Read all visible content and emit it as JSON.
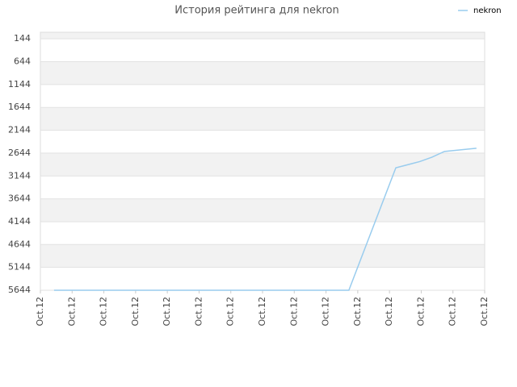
{
  "chart_data": {
    "type": "line",
    "title": "История рейтинга для nekron",
    "x": [
      0.43,
      9.72,
      11.2,
      11.95,
      12.34,
      12.73,
      13.74
    ],
    "series": [
      {
        "name": "nekron",
        "color": "#99ccee",
        "values": [
          5644,
          5644,
          2965,
          2830,
          2733,
          2608,
          2537
        ]
      }
    ],
    "xlim": [
      0,
      14
    ],
    "xticks": [
      {
        "value": 0,
        "label": "Oct.12"
      },
      {
        "value": 1,
        "label": "Oct.12"
      },
      {
        "value": 2,
        "label": "Oct.12"
      },
      {
        "value": 3,
        "label": "Oct.12"
      },
      {
        "value": 4,
        "label": "Oct.12"
      },
      {
        "value": 5,
        "label": "Oct.12"
      },
      {
        "value": 6,
        "label": "Oct.12"
      },
      {
        "value": 7,
        "label": "Oct.12"
      },
      {
        "value": 8,
        "label": "Oct.12"
      },
      {
        "value": 9,
        "label": "Oct.12"
      },
      {
        "value": 10,
        "label": "Oct.12"
      },
      {
        "value": 11,
        "label": "Oct.12"
      },
      {
        "value": 12,
        "label": "Oct.12"
      },
      {
        "value": 13,
        "label": "Oct.12"
      },
      {
        "value": 14,
        "label": "Oct.12"
      }
    ],
    "ylim": [
      5644,
      0
    ],
    "yticks": [
      144,
      644,
      1144,
      1644,
      2144,
      2644,
      3144,
      3644,
      4144,
      4644,
      5144,
      5644
    ],
    "grid": true,
    "legend": "top-right"
  }
}
